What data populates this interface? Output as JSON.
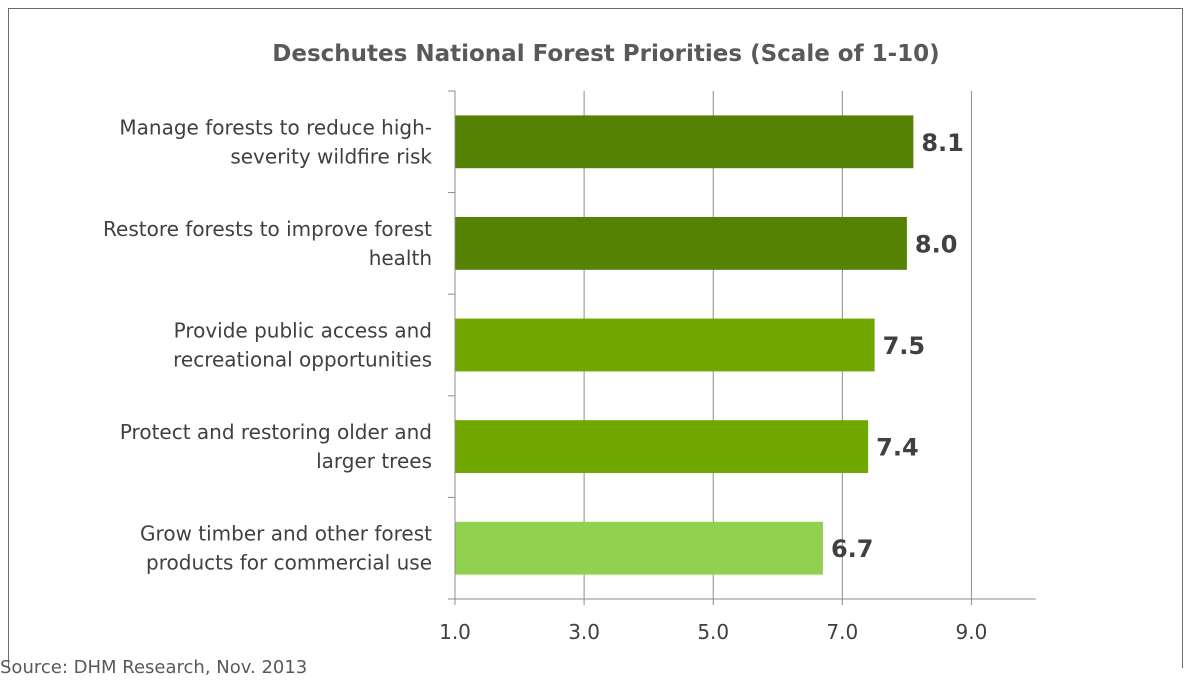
{
  "chart_data": {
    "type": "bar",
    "orientation": "horizontal",
    "title": "Deschutes National Forest Priorities (Scale of 1-10)",
    "categories": [
      [
        "Manage forests to reduce high-",
        "severity wildfire risk"
      ],
      [
        "Restore forests to improve forest",
        "health"
      ],
      [
        "Provide public access and",
        "recreational opportunities"
      ],
      [
        "Protect and restoring older and",
        "larger trees"
      ],
      [
        "Grow timber and other forest",
        "products for commercial use"
      ]
    ],
    "values": [
      8.1,
      8.0,
      7.5,
      7.4,
      6.7
    ],
    "value_labels": [
      "8.1",
      "8.0",
      "7.5",
      "7.4",
      "6.7"
    ],
    "bar_colors": [
      "#568203",
      "#568203",
      "#70a800",
      "#70a800",
      "#92d050"
    ],
    "xlim": [
      1.0,
      10.0
    ],
    "xticks": [
      1.0,
      3.0,
      5.0,
      7.0,
      9.0
    ],
    "xtick_labels": [
      "1.0",
      "3.0",
      "5.0",
      "7.0",
      "9.0"
    ],
    "xlabel": "",
    "ylabel": "",
    "grid": "vertical",
    "legend": "none"
  },
  "source": "Source: DHM Research, Nov. 2013"
}
